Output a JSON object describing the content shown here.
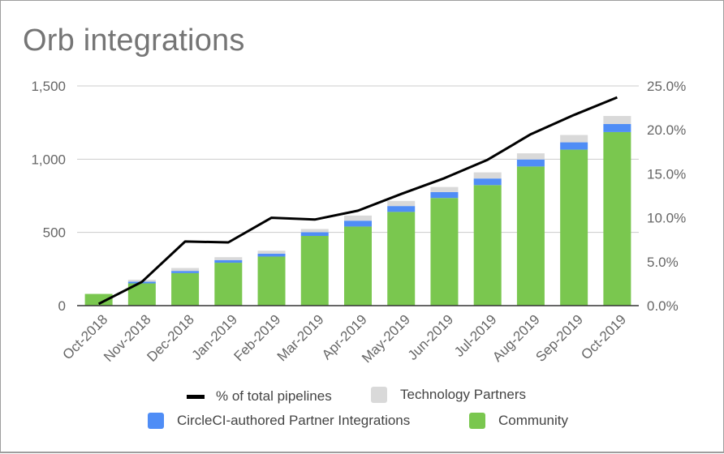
{
  "chart_data": {
    "type": "bar",
    "stacked": true,
    "title": "Orb integrations",
    "categories": [
      "Oct-2018",
      "Nov-2018",
      "Dec-2018",
      "Jan-2019",
      "Feb-2019",
      "Mar-2019",
      "Apr-2019",
      "May-2019",
      "Jun-2019",
      "Jul-2019",
      "Aug-2019",
      "Sep-2019",
      "Oct-2019"
    ],
    "series": [
      {
        "name": "Community",
        "type": "bar",
        "axis": "left",
        "color": "#7ac74f",
        "values": [
          80,
          152,
          222,
          293,
          335,
          476,
          540,
          640,
          735,
          823,
          950,
          1065,
          1185
        ]
      },
      {
        "name": "CircleCI-authored Partner Integrations",
        "type": "bar",
        "axis": "left",
        "color": "#4f8df6",
        "values": [
          0,
          12,
          15,
          18,
          20,
          25,
          40,
          40,
          40,
          45,
          48,
          50,
          55
        ]
      },
      {
        "name": "Technology Partners",
        "type": "bar",
        "axis": "left",
        "color": "#d9d9d9",
        "values": [
          0,
          13,
          20,
          20,
          20,
          22,
          35,
          35,
          35,
          42,
          42,
          50,
          55
        ]
      },
      {
        "name": "% of total pipelines",
        "type": "line",
        "axis": "right",
        "color": "#000000",
        "values": [
          0.2,
          2.7,
          7.3,
          7.2,
          10.0,
          9.8,
          10.8,
          12.7,
          14.5,
          16.6,
          19.5,
          21.7,
          23.7
        ]
      }
    ],
    "y_left": {
      "min": 0,
      "max": 1500,
      "ticks": [
        0,
        500,
        1000,
        1500
      ],
      "tick_labels": [
        "0",
        "500",
        "1,000",
        "1,500"
      ]
    },
    "y_right": {
      "min": 0,
      "max": 25,
      "ticks": [
        0,
        5,
        10,
        15,
        20,
        25
      ],
      "tick_labels": [
        "0.0%",
        "5.0%",
        "10.0%",
        "15.0%",
        "20.0%",
        "25.0%"
      ]
    },
    "xlabel": "",
    "ylabel": "",
    "grid": true,
    "legend_position": "bottom",
    "legend": [
      [
        "% of total pipelines",
        "Technology Partners"
      ],
      [
        "CircleCI-authored Partner Integrations",
        "Community"
      ]
    ]
  }
}
